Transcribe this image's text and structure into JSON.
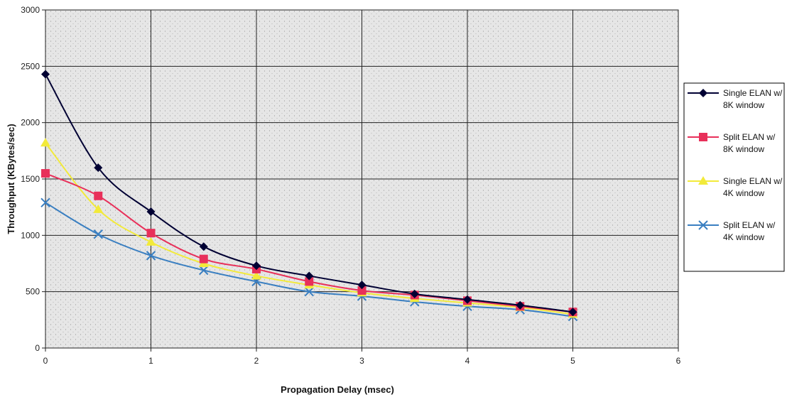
{
  "chart_data": {
    "type": "line",
    "title": "",
    "xlabel": "Propagation Delay (msec)",
    "ylabel": "Throughput (KBytes/sec)",
    "xlim": [
      0,
      6
    ],
    "ylim": [
      0,
      3000
    ],
    "xticks": [
      0,
      1,
      2,
      3,
      4,
      5,
      6
    ],
    "yticks": [
      0,
      500,
      1000,
      1500,
      2000,
      2500,
      3000
    ],
    "grid": true,
    "legend_position": "right",
    "x": [
      0,
      0.5,
      1,
      1.5,
      2,
      2.5,
      3,
      3.5,
      4,
      4.5,
      5
    ],
    "series": [
      {
        "name": "Single ELAN w/ 8K window",
        "legend_lines": [
          "Single ELAN w/",
          "8K window"
        ],
        "color": "#000033",
        "marker": "diamond",
        "values": [
          2430,
          1600,
          1210,
          900,
          730,
          640,
          560,
          480,
          430,
          380,
          320
        ]
      },
      {
        "name": "Split ELAN w/ 8K window",
        "legend_lines": [
          "Split ELAN w/",
          "8K window"
        ],
        "color": "#e8305a",
        "marker": "square",
        "values": [
          1550,
          1350,
          1020,
          790,
          700,
          590,
          510,
          470,
          420,
          370,
          320
        ]
      },
      {
        "name": "Single ELAN w/ 4K window",
        "legend_lines": [
          "Single ELAN w/",
          "4K window"
        ],
        "color": "#f2ea3a",
        "marker": "triangle",
        "values": [
          1820,
          1230,
          940,
          750,
          640,
          560,
          490,
          440,
          400,
          360,
          300
        ]
      },
      {
        "name": "Split ELAN w/ 4K window",
        "legend_lines": [
          "Split ELAN w/",
          "4K window"
        ],
        "color": "#3a7fc1",
        "marker": "x",
        "values": [
          1290,
          1010,
          820,
          690,
          590,
          500,
          460,
          410,
          370,
          340,
          280
        ]
      }
    ]
  }
}
